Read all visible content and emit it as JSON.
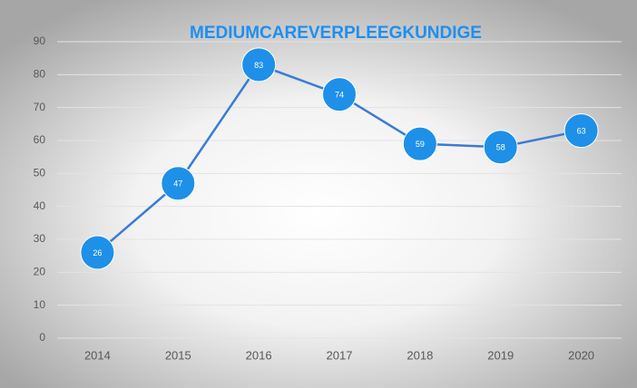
{
  "chart_data": {
    "type": "line",
    "title": "MEDIUMCAREVERPLEEGKUNDIGE",
    "categories": [
      "2014",
      "2015",
      "2016",
      "2017",
      "2018",
      "2019",
      "2020"
    ],
    "values": [
      26,
      47,
      83,
      74,
      59,
      58,
      63
    ],
    "color": "#3a7bd5",
    "marker_color": "#1e90e8",
    "ylim": [
      0,
      90
    ],
    "yticks": [
      0,
      10,
      20,
      30,
      40,
      50,
      60,
      70,
      80,
      90
    ],
    "grid": true
  }
}
